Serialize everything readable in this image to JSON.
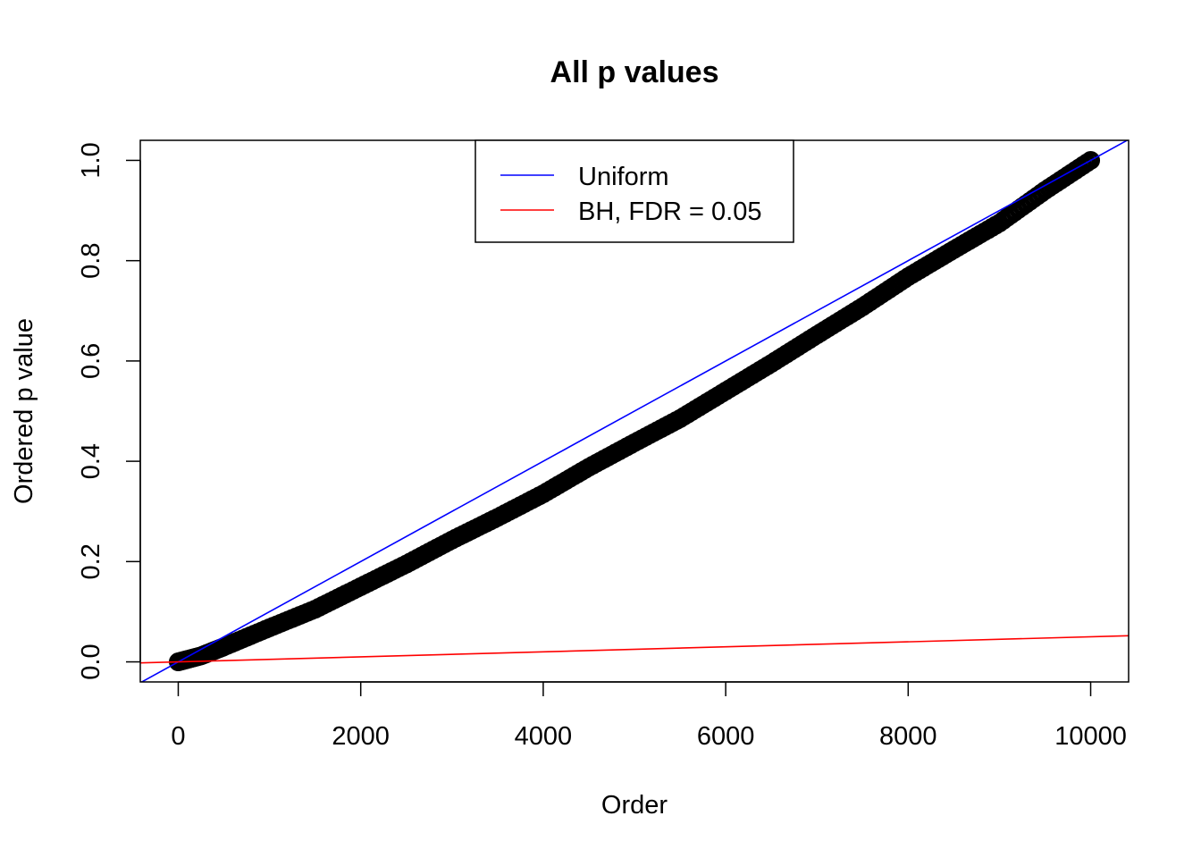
{
  "chart_data": {
    "type": "scatter",
    "title": "All p values",
    "xlabel": "Order",
    "ylabel": "Ordered p value",
    "xlim": [
      -416,
      10416
    ],
    "ylim": [
      -0.04,
      1.04
    ],
    "xticks": [
      0,
      2000,
      4000,
      6000,
      8000,
      10000
    ],
    "xtick_labels": [
      "0",
      "2000",
      "4000",
      "6000",
      "8000",
      "10000"
    ],
    "yticks": [
      0.0,
      0.2,
      0.4,
      0.6,
      0.8,
      1.0
    ],
    "ytick_labels": [
      "0.0",
      "0.2",
      "0.4",
      "0.6",
      "0.8",
      "1.0"
    ],
    "grid": false,
    "series": [
      {
        "name": "",
        "kind": "points",
        "color": "#000000",
        "points": [
          [
            0,
            0.0
          ],
          [
            250,
            0.012
          ],
          [
            500,
            0.03
          ],
          [
            1000,
            0.068
          ],
          [
            1500,
            0.105
          ],
          [
            2000,
            0.15
          ],
          [
            2500,
            0.195
          ],
          [
            3000,
            0.243
          ],
          [
            3500,
            0.288
          ],
          [
            4000,
            0.335
          ],
          [
            4500,
            0.388
          ],
          [
            5000,
            0.437
          ],
          [
            5500,
            0.485
          ],
          [
            6000,
            0.54
          ],
          [
            6500,
            0.595
          ],
          [
            7000,
            0.652
          ],
          [
            7500,
            0.708
          ],
          [
            8000,
            0.768
          ],
          [
            8500,
            0.822
          ],
          [
            9000,
            0.875
          ],
          [
            9500,
            0.94
          ],
          [
            10000,
            1.0
          ]
        ]
      },
      {
        "name": "Uniform",
        "kind": "abline",
        "color": "#0000ff",
        "intercept": 0,
        "slope": 0.0001
      },
      {
        "name": "BH, FDR = 0.05",
        "kind": "abline",
        "color": "#ff0000",
        "intercept": 0,
        "slope": 5e-06
      }
    ],
    "legend": {
      "position": "top",
      "entries": [
        {
          "label": "Uniform",
          "color": "#0000ff"
        },
        {
          "label": "BH, FDR = 0.05",
          "color": "#ff0000"
        }
      ]
    }
  }
}
